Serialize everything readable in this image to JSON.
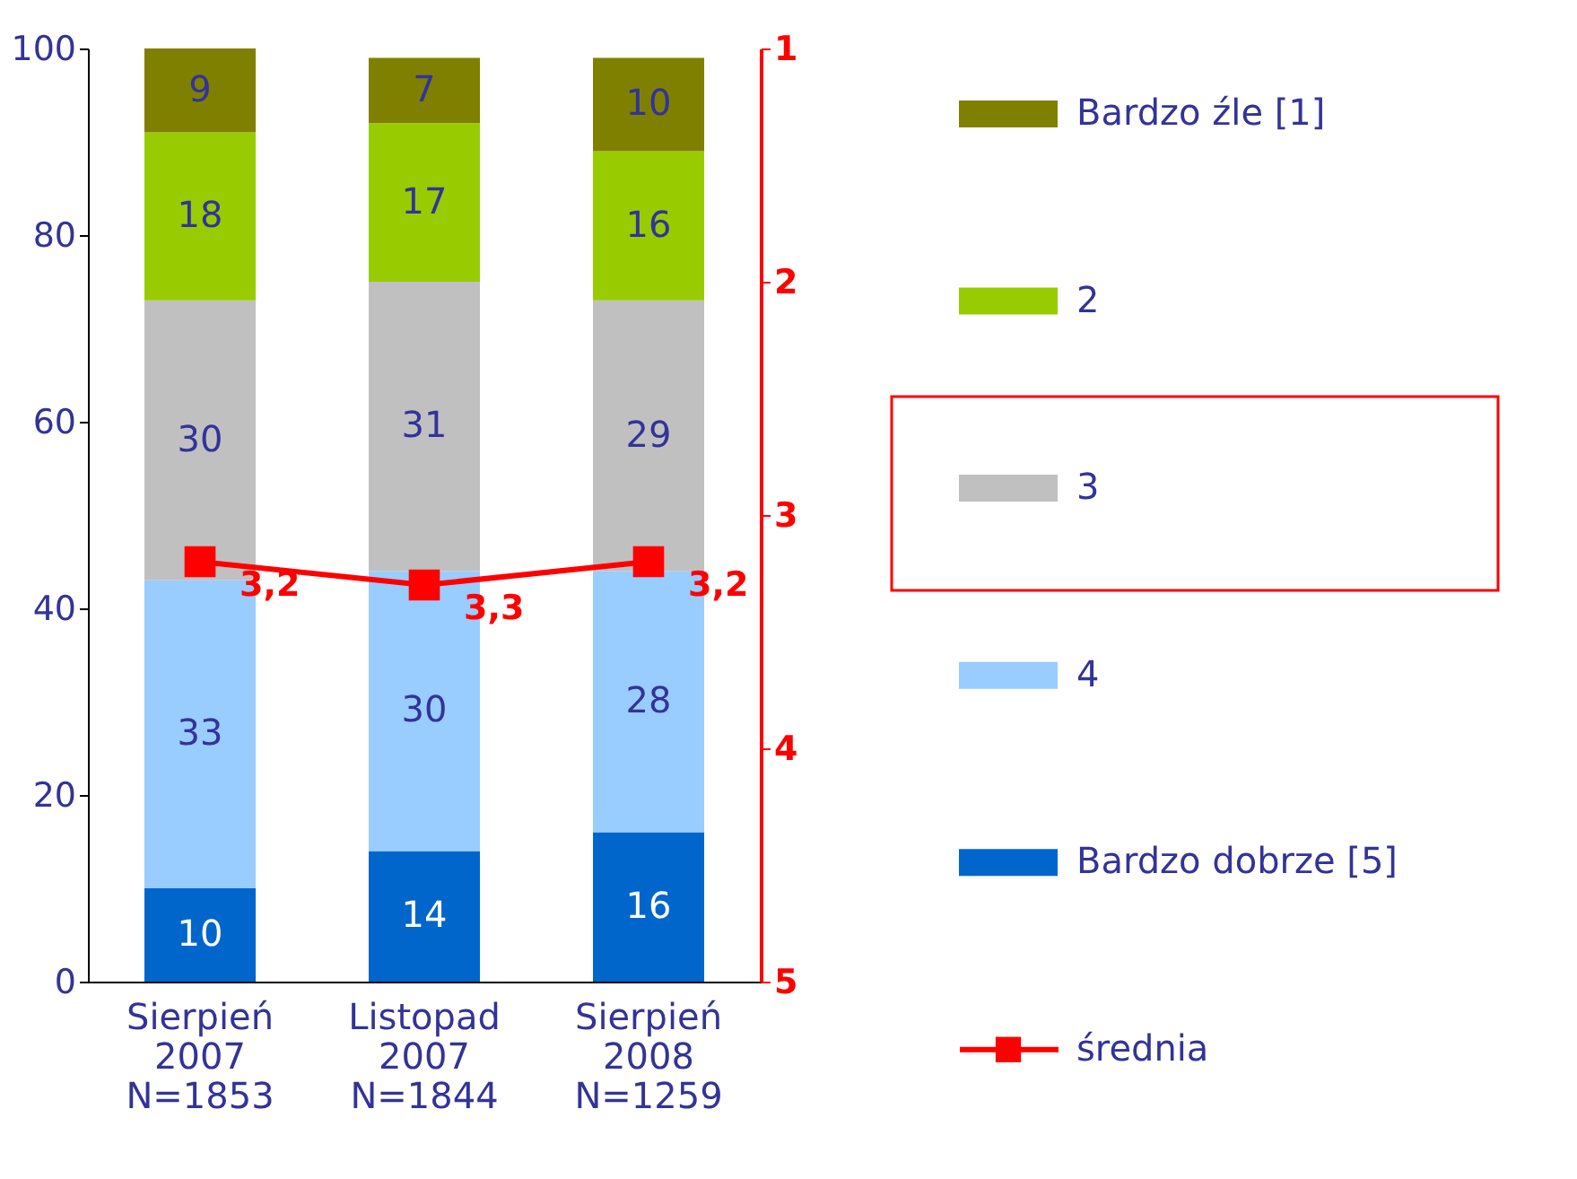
{
  "chart_data": {
    "type": "bar",
    "stacked": true,
    "categories": [
      "Sierpień\n2007\nN=1853",
      "Listopad\n2007\nN=1844",
      "Sierpień\n2008\nN=1259"
    ],
    "series": [
      {
        "name": "Bardzo dobrze [5]",
        "color": "#0066cc",
        "values": [
          10,
          14,
          16
        ]
      },
      {
        "name": "4",
        "color": "#99ccff",
        "values": [
          33,
          30,
          28
        ]
      },
      {
        "name": "3",
        "color": "#c0c0c0",
        "values": [
          30,
          31,
          29
        ]
      },
      {
        "name": "2",
        "color": "#99cc00",
        "values": [
          18,
          17,
          16
        ]
      },
      {
        "name": "Bardzo źle [1]",
        "color": "#808000",
        "values": [
          9,
          7,
          10
        ]
      },
      {
        "name": "średnia",
        "type": "line",
        "axis": "y2",
        "color": "#ff0000",
        "marker": "square",
        "values": [
          3.2,
          3.3,
          3.2
        ],
        "value_labels": [
          "3,2",
          "3,3",
          "3,2"
        ]
      }
    ],
    "data_labels": true,
    "ylim": [
      0,
      100
    ],
    "yticks": [
      0,
      20,
      40,
      60,
      80,
      100
    ],
    "y2lim": [
      5,
      1
    ],
    "y2ticks": [
      1,
      2,
      3,
      4,
      5
    ],
    "grid": false,
    "legend": "right"
  }
}
